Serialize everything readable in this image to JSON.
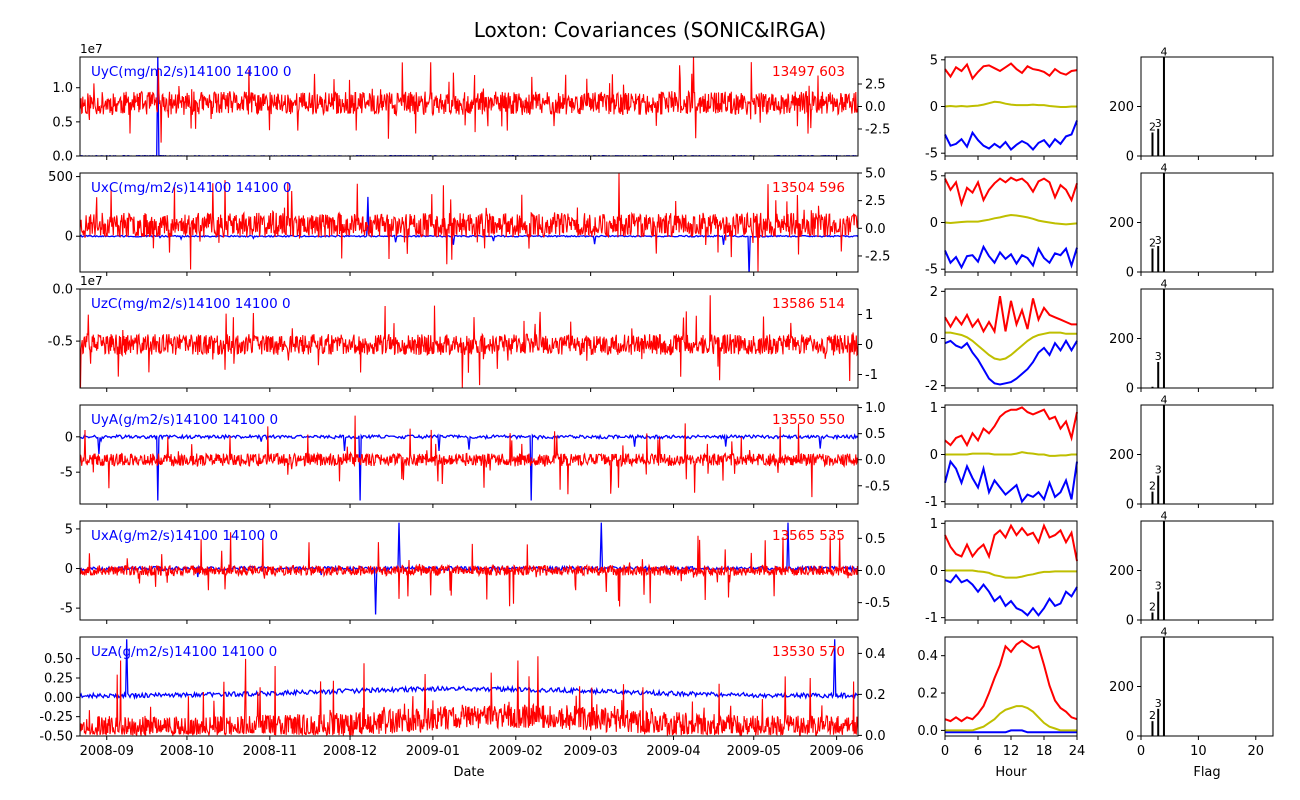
{
  "title": "Loxton: Covariances (SONIC&IRGA)",
  "colors": {
    "left": "#0000ff",
    "right": "#ff0000",
    "mean": "#bfbf00",
    "bar": "#000000",
    "axis": "#000000"
  },
  "time_axis": {
    "xlabel": "Date",
    "ticks": [
      "2008-09",
      "2008-10",
      "2008-11",
      "2008-12",
      "2009-01",
      "2009-02",
      "2009-03",
      "2009-04",
      "2009-05",
      "2009-06"
    ],
    "range": [
      "2008-08-22",
      "2009-06-09"
    ]
  },
  "hour_axis": {
    "xlabel": "Hour",
    "ticks": [
      "0",
      "6",
      "12",
      "18",
      "24"
    ],
    "range": [
      0,
      24
    ]
  },
  "flag_axis": {
    "xlabel": "Flag",
    "ticks": [
      "0",
      "10",
      "20"
    ],
    "range": [
      0,
      23
    ]
  },
  "chart_data": [
    {
      "type": "line",
      "label": "UyC(mg/m2/s)14100 14100 0",
      "counts": "13497 603",
      "left_axis": {
        "ticks": [
          "0.0",
          "0.5",
          "1.0"
        ],
        "tick_values": [
          0,
          0.5,
          1.0
        ],
        "ylim": [
          0,
          1.45
        ],
        "offset_text": "1e7"
      },
      "right_axis": {
        "ticks": [
          "2.5",
          "0.0",
          "-2.5"
        ],
        "tick_values": [
          2.5,
          0,
          -2.5
        ],
        "ylim": [
          -5.5,
          5.5
        ]
      },
      "left_series": {
        "base": 0,
        "noise": 0.005,
        "spike": 1.45,
        "spike_at": [
          0.1
        ],
        "neg": false
      },
      "right_series": {
        "base": 0.35,
        "noise": 1.3,
        "spike": 4.5,
        "seed": 11
      },
      "diurnal": {
        "ticks": [
          "5",
          "0",
          "-5"
        ],
        "tick_values": [
          5,
          0,
          -5
        ],
        "ylim": [
          -5.3,
          5.3
        ],
        "upper": [
          4.0,
          3.2,
          4.2,
          3.8,
          4.5,
          3.0,
          3.7,
          4.3,
          4.4,
          4.1,
          3.8,
          4.2,
          4.6,
          4.0,
          3.6,
          4.3,
          4.0,
          3.9,
          3.7,
          3.3,
          4.0,
          3.6,
          3.4,
          3.8,
          3.9
        ],
        "mean": [
          0.0,
          0.05,
          0.0,
          0.05,
          0.0,
          0.05,
          0.1,
          0.2,
          0.35,
          0.5,
          0.45,
          0.3,
          0.2,
          0.15,
          0.15,
          0.15,
          0.2,
          0.15,
          0.15,
          0.05,
          0.0,
          -0.05,
          -0.05,
          0.0,
          0.0
        ],
        "lower": [
          -3.0,
          -4.2,
          -4.0,
          -3.5,
          -4.3,
          -2.8,
          -3.6,
          -4.2,
          -4.5,
          -4.0,
          -4.4,
          -3.8,
          -4.6,
          -4.1,
          -3.7,
          -4.0,
          -4.6,
          -3.9,
          -3.6,
          -4.3,
          -3.5,
          -4.0,
          -3.2,
          -3.0,
          -1.5
        ]
      },
      "flags": {
        "ylim": [
          0,
          400
        ],
        "ticks": [
          "0",
          "200"
        ],
        "tick_values": [
          0,
          200
        ],
        "bars": [
          [
            2,
            95
          ],
          [
            3,
            110
          ],
          [
            4,
            398
          ]
        ],
        "labels": [
          "2",
          "3",
          "4"
        ]
      }
    },
    {
      "type": "line",
      "label": "UxC(mg/m2/s)14100 14100 0",
      "counts": "13504 596",
      "left_axis": {
        "ticks": [
          "500",
          "0"
        ],
        "tick_values": [
          500,
          0
        ],
        "ylim": [
          -300,
          530
        ],
        "offset_text": ""
      },
      "right_axis": {
        "ticks": [
          "5.0",
          "2.5",
          "0.0",
          "-2.5"
        ],
        "tick_values": [
          5.0,
          2.5,
          0.0,
          -2.5
        ],
        "ylim": [
          -3.95,
          5.0
        ]
      },
      "left_series": {
        "base": 0,
        "noise": 6,
        "spike": 330,
        "spike_at": [
          0.37,
          0.86
        ],
        "neg": true
      },
      "right_series": {
        "base": 0.3,
        "noise": 1.1,
        "spike": 3.8,
        "seed": 23
      },
      "diurnal": {
        "ticks": [
          "5",
          "0",
          "-5"
        ],
        "tick_values": [
          5,
          0,
          -5
        ],
        "ylim": [
          -5.3,
          5.3
        ],
        "upper": [
          4.7,
          3.5,
          4.3,
          2.0,
          3.7,
          3.2,
          4.3,
          2.4,
          3.5,
          4.2,
          4.7,
          4.3,
          4.8,
          4.5,
          4.7,
          4.2,
          3.3,
          4.4,
          4.7,
          4.3,
          2.7,
          4.0,
          3.5,
          2.4,
          4.2
        ],
        "mean": [
          0.0,
          -0.05,
          0.0,
          0.05,
          0.1,
          0.1,
          0.1,
          0.2,
          0.3,
          0.45,
          0.55,
          0.7,
          0.8,
          0.75,
          0.65,
          0.55,
          0.4,
          0.2,
          0.1,
          0.0,
          -0.1,
          -0.15,
          -0.2,
          -0.15,
          -0.1
        ],
        "lower": [
          -3.0,
          -4.3,
          -3.7,
          -4.8,
          -3.6,
          -3.5,
          -4.2,
          -2.6,
          -3.6,
          -4.3,
          -3.2,
          -3.9,
          -3.4,
          -4.4,
          -3.5,
          -3.8,
          -4.6,
          -2.8,
          -3.8,
          -4.3,
          -3.3,
          -3.5,
          -2.8,
          -4.6,
          -2.7
        ]
      },
      "flags": {
        "ylim": [
          0,
          400
        ],
        "ticks": [
          "0",
          "200"
        ],
        "tick_values": [
          0,
          200
        ],
        "bars": [
          [
            2,
            95
          ],
          [
            3,
            105
          ],
          [
            4,
            398
          ]
        ],
        "labels": [
          "2",
          "3",
          "4"
        ]
      }
    },
    {
      "type": "line",
      "label": "UzC(mg/m2/s)14100 14100 0",
      "counts": "13586 514",
      "left_axis": {
        "ticks": [
          "0.0",
          "-0.5"
        ],
        "tick_values": [
          0,
          -0.5
        ],
        "ylim": [
          -0.95,
          0.0
        ],
        "offset_text": "1e7"
      },
      "right_axis": {
        "ticks": [
          "1",
          "0",
          "-1"
        ],
        "tick_values": [
          1,
          0,
          -1
        ],
        "ylim": [
          -1.45,
          1.85
        ]
      },
      "left_series": {
        "base": 0,
        "noise": 0.0,
        "spike": 0.95,
        "spike_at": [
          0.1
        ],
        "neg": true,
        "hidden": true
      },
      "right_series": {
        "base": 0.0,
        "noise": 0.35,
        "spike": 1.3,
        "seed": 37
      },
      "diurnal": {
        "ticks": [
          "2",
          "0",
          "-2"
        ],
        "tick_values": [
          2,
          0,
          -2
        ],
        "ylim": [
          -2.1,
          2.1
        ],
        "upper": [
          0.9,
          0.5,
          0.9,
          0.6,
          1.0,
          0.5,
          0.8,
          0.3,
          0.7,
          0.3,
          1.8,
          0.3,
          1.6,
          0.6,
          1.2,
          0.4,
          1.7,
          0.8,
          1.3,
          1.0,
          0.9,
          0.8,
          0.7,
          0.6,
          0.6
        ],
        "mean": [
          0.25,
          0.25,
          0.2,
          0.15,
          0.05,
          -0.1,
          -0.3,
          -0.5,
          -0.7,
          -0.85,
          -0.9,
          -0.85,
          -0.7,
          -0.5,
          -0.3,
          -0.1,
          0.05,
          0.15,
          0.2,
          0.25,
          0.25,
          0.25,
          0.2,
          0.2,
          0.2
        ],
        "lower": [
          -0.2,
          -0.1,
          -0.3,
          -0.4,
          -0.2,
          -0.6,
          -0.9,
          -1.3,
          -1.7,
          -1.9,
          -1.95,
          -1.9,
          -1.85,
          -1.7,
          -1.5,
          -1.3,
          -1.0,
          -0.6,
          -0.4,
          -0.7,
          -0.2,
          -0.5,
          -0.1,
          -0.5,
          -0.1
        ]
      },
      "flags": {
        "ylim": [
          0,
          400
        ],
        "ticks": [
          "0",
          "200"
        ],
        "tick_values": [
          0,
          200
        ],
        "bars": [
          [
            2,
            5
          ],
          [
            3,
            105
          ],
          [
            4,
            398
          ]
        ],
        "labels": [
          "3",
          "4"
        ]
      }
    },
    {
      "type": "line",
      "label": "UyA(g/m2/s)14100 14100 0",
      "counts": "13550 550",
      "left_axis": {
        "ticks": [
          "0",
          "-5"
        ],
        "tick_values": [
          0,
          -5
        ],
        "ylim": [
          -9.5,
          4.5
        ],
        "offset_text": ""
      },
      "right_axis": {
        "ticks": [
          "1.0",
          "0.5",
          "0.0",
          "-0.5"
        ],
        "tick_values": [
          1.0,
          0.5,
          0.0,
          -0.5
        ],
        "ylim": [
          -0.85,
          1.05
        ]
      },
      "left_series": {
        "base": 0,
        "noise": 0.25,
        "spike": 9.0,
        "spike_at": [
          0.1,
          0.36,
          0.58
        ],
        "neg": true
      },
      "right_series": {
        "base": 0.0,
        "noise": 0.12,
        "spike": 0.75,
        "seed": 41
      },
      "diurnal": {
        "ticks": [
          "1",
          "0",
          "-1"
        ],
        "tick_values": [
          1,
          0,
          -1
        ],
        "ylim": [
          -1.05,
          1.05
        ],
        "upper": [
          0.3,
          0.2,
          0.35,
          0.4,
          0.2,
          0.45,
          0.3,
          0.55,
          0.45,
          0.6,
          0.8,
          0.9,
          0.95,
          0.95,
          1.0,
          0.9,
          0.85,
          0.9,
          0.95,
          0.75,
          0.8,
          0.55,
          0.7,
          0.35,
          0.9
        ],
        "mean": [
          0.0,
          0.0,
          0.0,
          0.0,
          0.0,
          0.02,
          0.02,
          0.02,
          0.02,
          0.0,
          0.0,
          0.0,
          0.0,
          0.02,
          0.05,
          0.03,
          0.02,
          0.0,
          0.0,
          -0.03,
          -0.03,
          -0.02,
          -0.02,
          0.0,
          0.0
        ],
        "lower": [
          -0.6,
          -0.15,
          -0.3,
          -0.6,
          -0.25,
          -0.5,
          -0.7,
          -0.3,
          -0.8,
          -0.55,
          -0.7,
          -0.85,
          -0.75,
          -0.65,
          -1.0,
          -0.85,
          -0.9,
          -0.8,
          -0.95,
          -0.6,
          -0.9,
          -0.8,
          -0.55,
          -0.95,
          -0.15
        ]
      },
      "flags": {
        "ylim": [
          0,
          400
        ],
        "ticks": [
          "0",
          "200"
        ],
        "tick_values": [
          0,
          200
        ],
        "bars": [
          [
            2,
            50
          ],
          [
            3,
            115
          ],
          [
            4,
            398
          ]
        ],
        "labels": [
          "2",
          "3",
          "4"
        ]
      }
    },
    {
      "type": "line",
      "label": "UxA(g/m2/s)14100 14100 0",
      "counts": "13565 535",
      "left_axis": {
        "ticks": [
          "5",
          "0",
          "-5"
        ],
        "tick_values": [
          5,
          0,
          -5
        ],
        "ylim": [
          -6.5,
          6.0
        ],
        "offset_text": ""
      },
      "right_axis": {
        "ticks": [
          "0.5",
          "0.0",
          "-0.5"
        ],
        "tick_values": [
          0.5,
          0.0,
          -0.5
        ],
        "ylim": [
          -0.77,
          0.77
        ]
      },
      "left_series": {
        "base": 0,
        "noise": 0.25,
        "spike": 5.8,
        "spike_at": [
          0.38,
          0.41,
          0.67,
          0.91
        ],
        "neg": true
      },
      "right_series": {
        "base": 0.0,
        "noise": 0.08,
        "spike": 0.55,
        "seed": 53
      },
      "diurnal": {
        "ticks": [
          "1",
          "0",
          "-1"
        ],
        "tick_values": [
          1,
          0,
          -1
        ],
        "ylim": [
          -1.05,
          1.05
        ],
        "upper": [
          0.75,
          0.5,
          0.35,
          0.3,
          0.55,
          0.3,
          0.45,
          0.55,
          0.3,
          0.75,
          0.85,
          0.7,
          0.95,
          0.75,
          0.9,
          0.75,
          0.8,
          0.6,
          0.95,
          0.7,
          0.75,
          0.85,
          0.6,
          0.8,
          0.2
        ],
        "mean": [
          0.0,
          0.0,
          0.0,
          0.0,
          0.0,
          0.0,
          -0.02,
          -0.03,
          -0.05,
          -0.1,
          -0.12,
          -0.15,
          -0.15,
          -0.15,
          -0.13,
          -0.1,
          -0.08,
          -0.05,
          -0.03,
          -0.03,
          -0.02,
          -0.02,
          -0.02,
          -0.02,
          -0.02
        ],
        "lower": [
          -0.2,
          -0.25,
          -0.1,
          -0.25,
          -0.2,
          -0.3,
          -0.45,
          -0.3,
          -0.45,
          -0.65,
          -0.55,
          -0.75,
          -0.65,
          -0.8,
          -0.85,
          -0.95,
          -0.8,
          -0.95,
          -0.8,
          -0.6,
          -0.75,
          -0.7,
          -0.45,
          -0.55,
          -0.35
        ]
      },
      "flags": {
        "ylim": [
          0,
          400
        ],
        "ticks": [
          "0",
          "200"
        ],
        "tick_values": [
          0,
          200
        ],
        "bars": [
          [
            2,
            30
          ],
          [
            3,
            115
          ],
          [
            4,
            398
          ]
        ],
        "labels": [
          "2",
          "3",
          "4"
        ]
      }
    },
    {
      "type": "line",
      "label": "UzA(g/m2/s)14100 14100 0",
      "counts": "13530 570",
      "left_axis": {
        "ticks": [
          "0.50",
          "0.25",
          "0.00",
          "-0.25",
          "-0.50"
        ],
        "tick_values": [
          0.5,
          0.25,
          0.0,
          -0.25,
          -0.5
        ],
        "ylim": [
          -0.5,
          0.78
        ],
        "offset_text": ""
      },
      "right_axis": {
        "ticks": [
          "0.4",
          "0.2",
          "0.0"
        ],
        "tick_values": [
          0.4,
          0.2,
          0.0
        ],
        "ylim": [
          -0.003,
          0.48
        ]
      },
      "left_series": {
        "base": 0.02,
        "noise": 0.03,
        "spike": 0.75,
        "spike_at": [
          0.06,
          0.97
        ],
        "neg": false,
        "bump": true
      },
      "right_series": {
        "base": 0.035,
        "noise": 0.06,
        "spike": 0.3,
        "seed": 67,
        "positive": true,
        "bump": true
      },
      "diurnal": {
        "ticks": [
          "0.4",
          "0.2",
          "0.0"
        ],
        "tick_values": [
          0.4,
          0.2,
          0.0
        ],
        "ylim": [
          -0.03,
          0.5
        ],
        "upper": [
          0.06,
          0.05,
          0.07,
          0.05,
          0.07,
          0.06,
          0.09,
          0.13,
          0.2,
          0.28,
          0.35,
          0.45,
          0.42,
          0.46,
          0.48,
          0.46,
          0.44,
          0.45,
          0.35,
          0.24,
          0.16,
          0.12,
          0.1,
          0.07,
          0.06
        ],
        "mean": [
          0.0,
          0.0,
          0.0,
          0.0,
          0.0,
          0.0,
          0.01,
          0.02,
          0.04,
          0.06,
          0.09,
          0.11,
          0.12,
          0.13,
          0.13,
          0.12,
          0.1,
          0.07,
          0.04,
          0.02,
          0.01,
          0.0,
          0.0,
          0.0,
          0.0
        ],
        "lower": [
          -0.01,
          -0.01,
          -0.01,
          -0.01,
          -0.01,
          -0.01,
          -0.01,
          -0.01,
          -0.01,
          -0.01,
          -0.01,
          -0.01,
          0.0,
          0.0,
          0.0,
          -0.01,
          -0.01,
          -0.01,
          -0.01,
          -0.01,
          -0.01,
          -0.01,
          -0.01,
          -0.01,
          -0.01
        ]
      },
      "flags": {
        "ylim": [
          0,
          400
        ],
        "ticks": [
          "0",
          "200"
        ],
        "tick_values": [
          0,
          200
        ],
        "bars": [
          [
            2,
            60
          ],
          [
            3,
            110
          ],
          [
            4,
            398
          ]
        ],
        "labels": [
          "2",
          "3",
          "4"
        ]
      }
    }
  ]
}
